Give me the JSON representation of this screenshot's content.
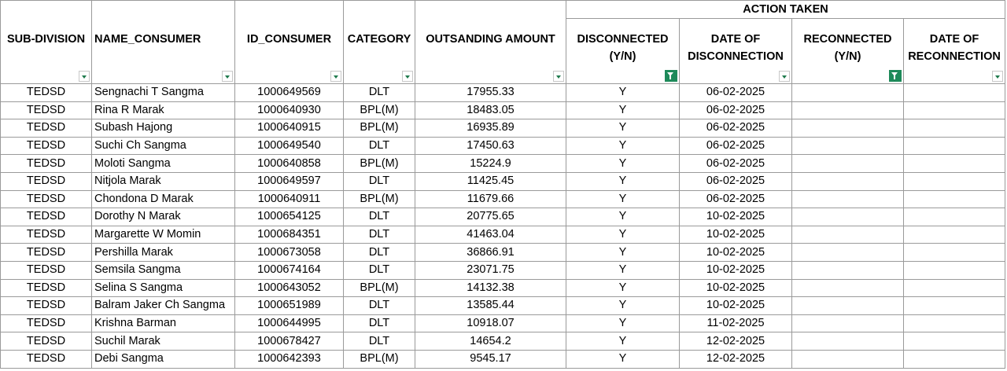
{
  "header": {
    "group_label": "ACTION TAKEN",
    "columns": {
      "sub_division": "SUB-DIVISION",
      "name_consumer": "NAME_CONSUMER",
      "id_consumer": "ID_CONSUMER",
      "category": "CATEGORY",
      "outstanding_amount": "OUTSANDING AMOUNT",
      "disconnected_1": "DISCONNECTED",
      "disconnected_2": "(Y/N)",
      "date_disc_1": "DATE OF",
      "date_disc_2": "DISCONNECTION",
      "reconnected_1": "RECONNECTED",
      "reconnected_2": "(Y/N)",
      "date_recon_1": "DATE OF",
      "date_recon_2": "RECONNECTION"
    }
  },
  "rows": [
    {
      "sub_division": "TEDSD",
      "name": "Sengnachi T Sangma",
      "id": "1000649569",
      "category": "DLT",
      "amount": "17955.33",
      "disconnected": "Y",
      "date_disc": "06-02-2025",
      "reconnected": "",
      "date_recon": ""
    },
    {
      "sub_division": "TEDSD",
      "name": "Rina R Marak",
      "id": "1000640930",
      "category": "BPL(M)",
      "amount": "18483.05",
      "disconnected": "Y",
      "date_disc": "06-02-2025",
      "reconnected": "",
      "date_recon": ""
    },
    {
      "sub_division": "TEDSD",
      "name": "Subash  Hajong",
      "id": "1000640915",
      "category": "BPL(M)",
      "amount": "16935.89",
      "disconnected": "Y",
      "date_disc": "06-02-2025",
      "reconnected": "",
      "date_recon": ""
    },
    {
      "sub_division": "TEDSD",
      "name": "Suchi Ch Sangma",
      "id": "1000649540",
      "category": "DLT",
      "amount": "17450.63",
      "disconnected": "Y",
      "date_disc": "06-02-2025",
      "reconnected": "",
      "date_recon": ""
    },
    {
      "sub_division": "TEDSD",
      "name": "Moloti  Sangma",
      "id": "1000640858",
      "category": "BPL(M)",
      "amount": "15224.9",
      "disconnected": "Y",
      "date_disc": "06-02-2025",
      "reconnected": "",
      "date_recon": ""
    },
    {
      "sub_division": "TEDSD",
      "name": "Nitjola  Marak",
      "id": "1000649597",
      "category": "DLT",
      "amount": "11425.45",
      "disconnected": "Y",
      "date_disc": "06-02-2025",
      "reconnected": "",
      "date_recon": ""
    },
    {
      "sub_division": "TEDSD",
      "name": "Chondona D Marak",
      "id": "1000640911",
      "category": "BPL(M)",
      "amount": "11679.66",
      "disconnected": "Y",
      "date_disc": "06-02-2025",
      "reconnected": "",
      "date_recon": ""
    },
    {
      "sub_division": "TEDSD",
      "name": "Dorothy N Marak",
      "id": "1000654125",
      "category": "DLT",
      "amount": "20775.65",
      "disconnected": "Y",
      "date_disc": "10-02-2025",
      "reconnected": "",
      "date_recon": ""
    },
    {
      "sub_division": "TEDSD",
      "name": "Margarette W Momin",
      "id": "1000684351",
      "category": "DLT",
      "amount": "41463.04",
      "disconnected": "Y",
      "date_disc": "10-02-2025",
      "reconnected": "",
      "date_recon": ""
    },
    {
      "sub_division": "TEDSD",
      "name": "Pershilla  Marak",
      "id": "1000673058",
      "category": "DLT",
      "amount": "36866.91",
      "disconnected": "Y",
      "date_disc": "10-02-2025",
      "reconnected": "",
      "date_recon": ""
    },
    {
      "sub_division": "TEDSD",
      "name": "Semsila  Sangma",
      "id": "1000674164",
      "category": "DLT",
      "amount": "23071.75",
      "disconnected": "Y",
      "date_disc": "10-02-2025",
      "reconnected": "",
      "date_recon": ""
    },
    {
      "sub_division": "TEDSD",
      "name": "Selina  S Sangma",
      "id": "1000643052",
      "category": "BPL(M)",
      "amount": "14132.38",
      "disconnected": "Y",
      "date_disc": "10-02-2025",
      "reconnected": "",
      "date_recon": ""
    },
    {
      "sub_division": "TEDSD",
      "name": "Balram Jaker  Ch Sangma",
      "id": "1000651989",
      "category": "DLT",
      "amount": "13585.44",
      "disconnected": "Y",
      "date_disc": "10-02-2025",
      "reconnected": "",
      "date_recon": ""
    },
    {
      "sub_division": "TEDSD",
      "name": "Krishna  Barman",
      "id": "1000644995",
      "category": "DLT",
      "amount": "10918.07",
      "disconnected": "Y",
      "date_disc": "11-02-2025",
      "reconnected": "",
      "date_recon": ""
    },
    {
      "sub_division": "TEDSD",
      "name": "Suchil  Marak",
      "id": "1000678427",
      "category": "DLT",
      "amount": "14654.2",
      "disconnected": "Y",
      "date_disc": "12-02-2025",
      "reconnected": "",
      "date_recon": ""
    },
    {
      "sub_division": "TEDSD",
      "name": "Debi  Sangma",
      "id": "1000642393",
      "category": "BPL(M)",
      "amount": "9545.17",
      "disconnected": "Y",
      "date_disc": "12-02-2025",
      "reconnected": "",
      "date_recon": ""
    }
  ],
  "filters": {
    "sub_division": "dropdown-icon",
    "name_consumer": "dropdown-icon",
    "id_consumer": "dropdown-icon",
    "category": "dropdown-icon",
    "outstanding_amount": "dropdown-icon",
    "disconnected": "filter-active-icon",
    "date_disc": "dropdown-icon",
    "reconnected": "filter-active-icon",
    "date_recon": "dropdown-icon"
  },
  "colors": {
    "filter_active": "#1e8a5a",
    "grid": "#9a9a9a"
  }
}
